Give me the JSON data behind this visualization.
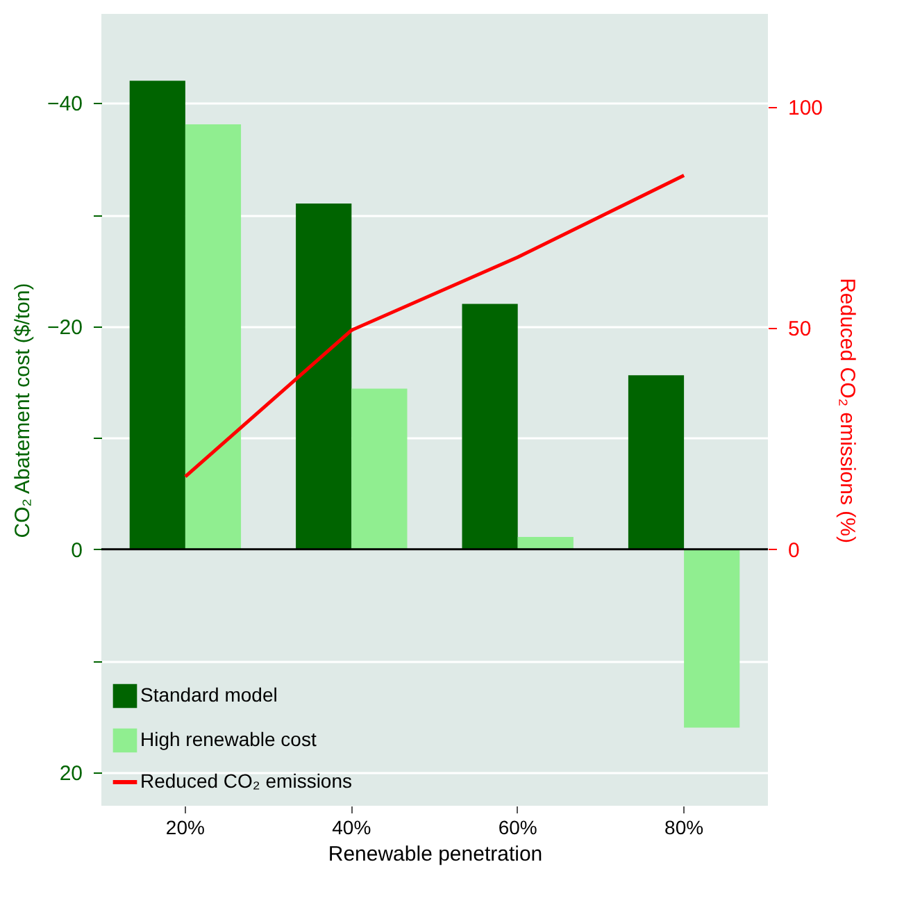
{
  "chart_data": {
    "type": "bar",
    "xlabel": "Renewable penetration",
    "ylabel": "CO₂ Abatement cost ($/ton)",
    "y2label": "Reduced CO₂ emissions (%)",
    "categories": [
      "20%",
      "40%",
      "60%",
      "80%"
    ],
    "series": [
      {
        "name": "Standard model",
        "type": "bar",
        "color": "#006400",
        "values": [
          -42,
          -31,
          -22,
          -15.6
        ]
      },
      {
        "name": "High renewable cost",
        "type": "bar",
        "color": "#90ee90",
        "values": [
          -38.1,
          -14.4,
          -1.1,
          16
        ]
      },
      {
        "name": "Reduced CO₂ emissions",
        "type": "line",
        "axis": "y2",
        "color": "#ff0000",
        "values": [
          16.4,
          49.5,
          66,
          84.5
        ]
      }
    ],
    "ylim": [
      23,
      -48
    ],
    "yticks": [
      {
        "value": -40,
        "label": "−40"
      },
      {
        "value": -30,
        "label": null
      },
      {
        "value": -20,
        "label": "−20"
      },
      {
        "value": -10,
        "label": null
      },
      0,
      {
        "value": 10,
        "label": null
      },
      20
    ],
    "y2lim": [
      -58,
      121
    ],
    "y2ticks": [
      0,
      50,
      100
    ],
    "ref_lines": [
      {
        "axis": "y",
        "value": 0,
        "color": "#000000"
      }
    ],
    "grid": "y",
    "legend": "bottom left",
    "line_style": "solid"
  }
}
